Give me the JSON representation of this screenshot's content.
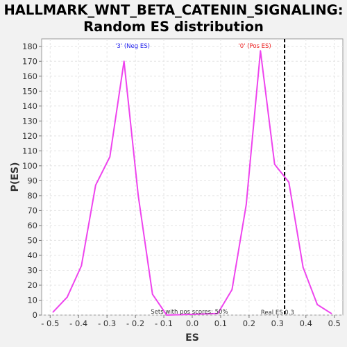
{
  "chart_data": {
    "type": "line",
    "title_lines": [
      "HALLMARK_WNT_BETA_CATENIN_SIGNALING:",
      "Random ES distribution"
    ],
    "xlabel": "ES",
    "ylabel": "P(ES)",
    "xlim": [
      -0.53,
      0.53
    ],
    "ylim": [
      0,
      185
    ],
    "x_ticks": [
      -0.5,
      -0.4,
      -0.3,
      -0.2,
      -0.1,
      0.0,
      0.1,
      0.2,
      0.3,
      0.4,
      0.5
    ],
    "x_tick_labels": [
      "- 0.5",
      "- 0.4",
      "- 0.3",
      "- 0.2",
      "- 0.1",
      "0.0",
      "0.1",
      "0.2",
      "0.3",
      "0.4",
      "0.5"
    ],
    "y_ticks": [
      0,
      10,
      20,
      30,
      40,
      50,
      60,
      70,
      80,
      90,
      100,
      110,
      120,
      130,
      140,
      150,
      160,
      170,
      180
    ],
    "grid": true,
    "series": [
      {
        "color": "#ee44ee",
        "x": [
          -0.49,
          -0.44,
          -0.39,
          -0.34,
          -0.29,
          -0.24,
          -0.19,
          -0.14,
          -0.09,
          0.09,
          0.14,
          0.19,
          0.24,
          0.29,
          0.34,
          0.39,
          0.44,
          0.49
        ],
        "y": [
          2,
          12,
          33,
          87,
          106,
          170,
          80,
          14,
          0,
          1,
          17,
          74,
          177,
          101,
          89,
          32,
          7,
          1
        ]
      }
    ],
    "annotations": {
      "neg_label": {
        "text": "'3' (Neg ES)",
        "x": -0.21,
        "color": "#2222ee"
      },
      "pos_label": {
        "text": "'0' (Pos ES)",
        "x": 0.22,
        "color": "#ee2222"
      },
      "pos_scores": {
        "text": "Sets with pos scores: 50%",
        "x": -0.01
      },
      "real_es": {
        "text": "Real ES 0.3",
        "x": 0.3,
        "line_x": 0.325
      }
    }
  }
}
